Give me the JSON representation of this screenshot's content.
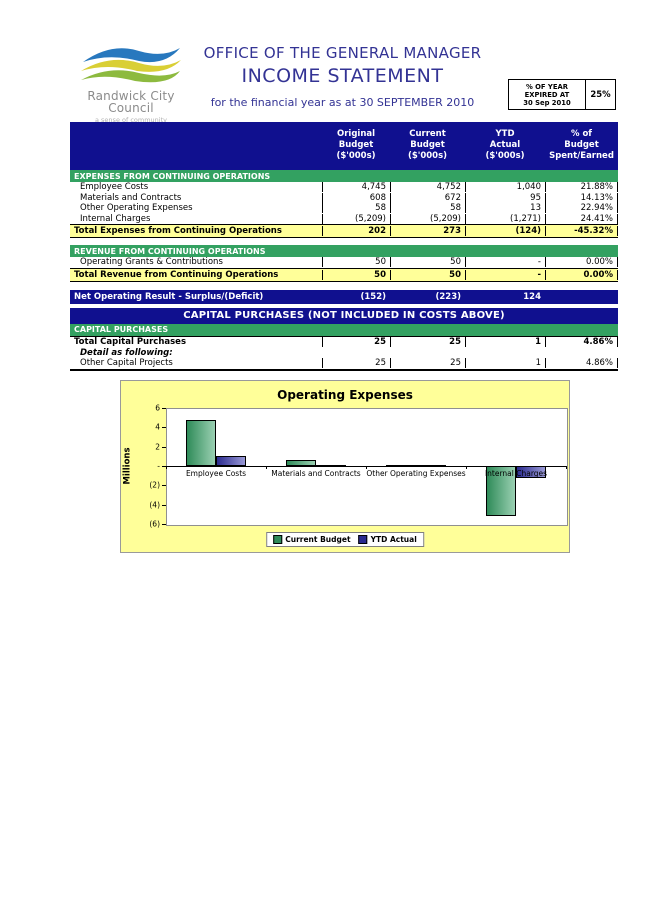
{
  "header": {
    "org_name": "Randwick City\nCouncil",
    "tagline": "a sense of community",
    "title": "OFFICE OF THE GENERAL MANAGER",
    "subtitle": "INCOME STATEMENT",
    "period": "for the financial year as at 30 SEPTEMBER 2010",
    "year_expired": {
      "label": "% OF YEAR\nEXPIRED AT\n30 Sep 2010",
      "value": "25%"
    }
  },
  "colors": {
    "navy": "#10108F",
    "section_green": "#33A161",
    "total_yellow": "#FFFF99",
    "chart_bg": "#FFFF99",
    "title_blue": "#333394"
  },
  "table": {
    "columns": [
      {
        "header": "Original\nBudget\n($'000s)"
      },
      {
        "header": "Current\nBudget\n($'000s)"
      },
      {
        "header": "YTD\nActual\n($'000s)"
      },
      {
        "header": "% of\nBudget\nSpent/Earned"
      }
    ],
    "rows": [
      {
        "type": "section",
        "label": "EXPENSES FROM CONTINUING OPERATIONS"
      },
      {
        "type": "data",
        "label": "Employee Costs",
        "values": [
          "4,745",
          "4,752",
          "1,040",
          "21.88%"
        ]
      },
      {
        "type": "data",
        "label": "Materials and Contracts",
        "values": [
          "608",
          "672",
          "95",
          "14.13%"
        ]
      },
      {
        "type": "data",
        "label": "Other Operating Expenses",
        "values": [
          "58",
          "58",
          "13",
          "22.94%"
        ]
      },
      {
        "type": "data",
        "label": "Internal Charges",
        "values": [
          "(5,209)",
          "(5,209)",
          "(1,271)",
          "24.41%"
        ]
      },
      {
        "type": "total",
        "label": "Total Expenses from Continuing Operations",
        "values": [
          "202",
          "273",
          "(124)",
          "-45.32%"
        ]
      },
      {
        "type": "spacer"
      },
      {
        "type": "section",
        "label": "REVENUE FROM CONTINUING OPERATIONS"
      },
      {
        "type": "data",
        "label": "Operating Grants & Contributions",
        "values": [
          "50",
          "50",
          "-",
          "0.00%"
        ]
      },
      {
        "type": "total",
        "label": "Total Revenue from Continuing Operations",
        "values": [
          "50",
          "50",
          "-",
          "0.00%"
        ]
      },
      {
        "type": "spacer"
      },
      {
        "type": "net",
        "label": "Net Operating Result - Surplus/(Deficit)",
        "values": [
          "(152)",
          "(223)",
          "124",
          ""
        ]
      },
      {
        "type": "banner",
        "label": "CAPITAL PURCHASES (NOT INCLUDED IN COSTS ABOVE)"
      },
      {
        "type": "section",
        "label": "CAPITAL PURCHASES"
      },
      {
        "type": "bold",
        "label": "Total Capital Purchases",
        "values": [
          "25",
          "25",
          "1",
          "4.86%"
        ]
      },
      {
        "type": "detail",
        "label": "Detail as following:"
      },
      {
        "type": "data",
        "label": "Other Capital Projects",
        "values": [
          "25",
          "25",
          "1",
          "4.86%"
        ]
      }
    ]
  },
  "chart_data": {
    "type": "bar",
    "title": "Operating Expenses",
    "ylabel": "Millions",
    "ylim": [
      -6,
      6
    ],
    "yticks": [
      6,
      4,
      2,
      0,
      -2,
      -4,
      -6
    ],
    "ytick_labels": [
      "6",
      "4",
      "2",
      "-",
      "(2)",
      "(4)",
      "(6)"
    ],
    "grid": false,
    "legend_position": "bottom",
    "categories": [
      "Employee Costs",
      "Materials and Contracts",
      "Other Operating Expenses",
      "Internal Charges"
    ],
    "series": [
      {
        "name": "Current Budget",
        "color_dark": "#2F8B59",
        "color_light": "#9AD0B2",
        "values": [
          4.752,
          0.672,
          0.058,
          -5.209
        ]
      },
      {
        "name": "YTD Actual",
        "color_dark": "#2B2B8F",
        "color_light": "#9999D6",
        "values": [
          1.04,
          0.095,
          0.013,
          -1.271
        ]
      }
    ]
  }
}
